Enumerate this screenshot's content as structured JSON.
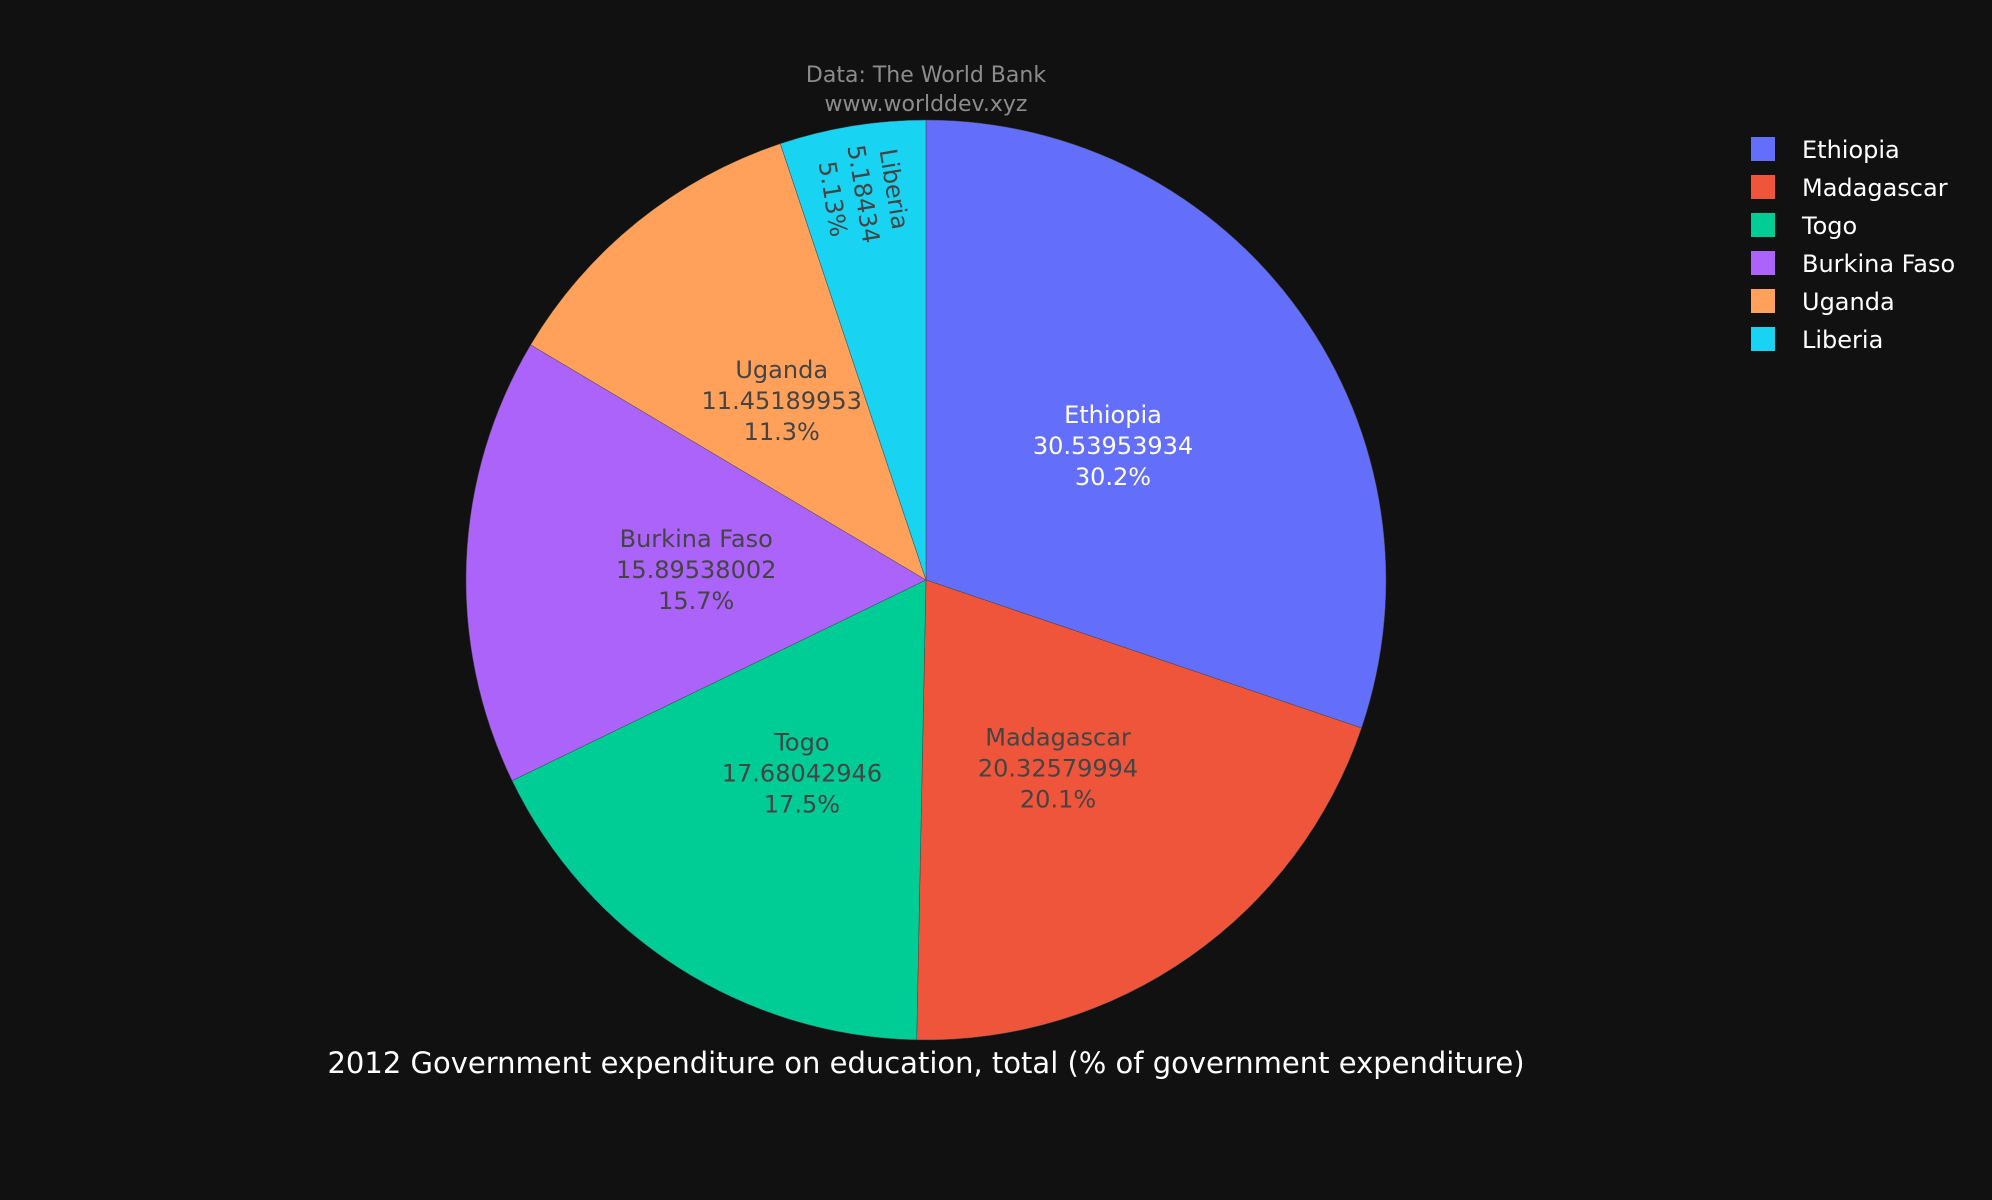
{
  "chart_data": {
    "type": "pie",
    "title": "2012 Government expenditure on education, total (% of government expenditure)",
    "source_line1": "Data: The World Bank",
    "source_line2": "www.worlddev.xyz",
    "legend_position": "top-right",
    "slices": [
      {
        "label": "Ethiopia",
        "value": 30.53953934,
        "value_text": "30.53953934",
        "percent_text": "30.2%",
        "color": "#636efa",
        "text_color": "#ffffff"
      },
      {
        "label": "Madagascar",
        "value": 20.32579994,
        "value_text": "20.32579994",
        "percent_text": "20.1%",
        "color": "#ef553b",
        "text_color": "#444444"
      },
      {
        "label": "Togo",
        "value": 17.68042946,
        "value_text": "17.68042946",
        "percent_text": "17.5%",
        "color": "#00cc96",
        "text_color": "#444444"
      },
      {
        "label": "Burkina Faso",
        "value": 15.89538002,
        "value_text": "15.89538002",
        "percent_text": "15.7%",
        "color": "#ab63fa",
        "text_color": "#444444"
      },
      {
        "label": "Uganda",
        "value": 11.45189953,
        "value_text": "11.45189953",
        "percent_text": "11.3%",
        "color": "#ffa15a",
        "text_color": "#444444"
      },
      {
        "label": "Liberia",
        "value": 5.18434,
        "value_text": "5.18434",
        "percent_text": "5.13%",
        "color": "#19d3f3",
        "text_color": "#444444"
      }
    ]
  }
}
